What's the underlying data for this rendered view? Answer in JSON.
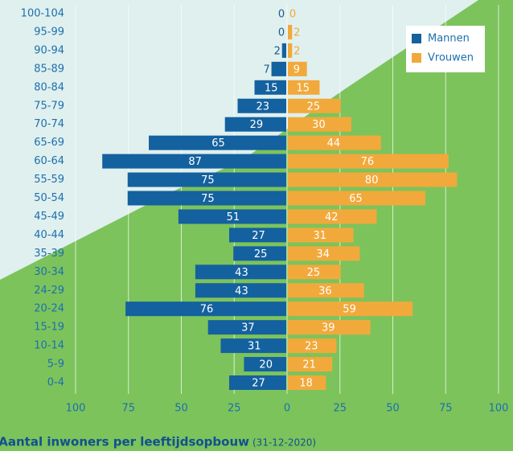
{
  "chart_data": {
    "type": "population-pyramid",
    "title": "Aantal inwoners per leeftijdsopbouw",
    "subtitle": "(31-12-2020)",
    "categories": [
      "100-104",
      "95-99",
      "90-94",
      "85-89",
      "80-84",
      "75-79",
      "70-74",
      "65-69",
      "60-64",
      "55-59",
      "50-54",
      "45-49",
      "40-44",
      "35-39",
      "30-34",
      "24-29",
      "20-24",
      "15-19",
      "10-14",
      "5-9",
      "0-4"
    ],
    "series": [
      {
        "name": "Mannen",
        "color": "#14619f",
        "values": [
          0,
          0,
          2,
          7,
          15,
          23,
          29,
          65,
          87,
          75,
          75,
          51,
          27,
          25,
          43,
          43,
          76,
          37,
          31,
          20,
          27
        ]
      },
      {
        "name": "Vrouwen",
        "color": "#f2a93b",
        "values": [
          0,
          2,
          2,
          9,
          15,
          25,
          30,
          44,
          76,
          80,
          65,
          42,
          31,
          34,
          25,
          36,
          59,
          39,
          23,
          21,
          18
        ]
      }
    ],
    "xlim": [
      -100,
      100
    ],
    "xticks": [
      {
        "value": -100,
        "label": "100"
      },
      {
        "value": -75,
        "label": "75"
      },
      {
        "value": -50,
        "label": "50"
      },
      {
        "value": -25,
        "label": "25"
      },
      0,
      25,
      50,
      75,
      100
    ],
    "grid": true,
    "legend": "top-right"
  }
}
